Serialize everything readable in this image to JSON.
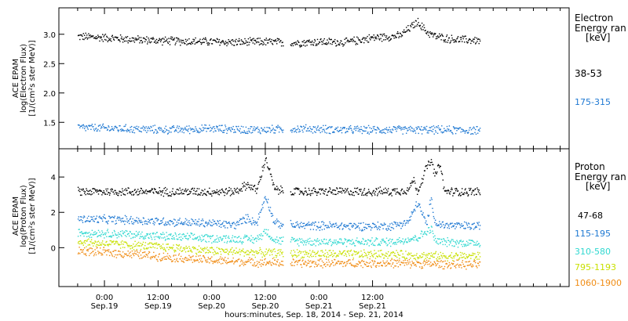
{
  "chart_data": [
    {
      "type": "scatter",
      "panel": "electron",
      "ylabel_lines": [
        "ACE EPAM",
        "log(Electron Flux)",
        "[1/(cm²s ster MeV)]"
      ],
      "legend_title": [
        "Electron",
        "Energy ran",
        "[keV]"
      ],
      "ylim": [
        1.05,
        3.45
      ],
      "yticks": [
        1.5,
        2.0,
        2.5,
        3.0
      ],
      "ytick_labels": [
        "1.5",
        "2.0",
        "2.5",
        "3.0"
      ],
      "series": [
        {
          "name": "38-53",
          "color": "#000000",
          "x": [
            0,
            6,
            12,
            18,
            24,
            30,
            36,
            42,
            48,
            54,
            60,
            66,
            72,
            76,
            78,
            80,
            84,
            90
          ],
          "y": [
            2.97,
            2.95,
            2.92,
            2.9,
            2.89,
            2.88,
            2.87,
            2.88,
            2.86,
            2.88,
            2.87,
            2.95,
            2.98,
            3.22,
            3.05,
            2.97,
            2.92,
            2.9
          ]
        },
        {
          "name": "175-315",
          "color": "#1e78d2",
          "x": [
            0,
            10,
            20,
            30,
            40,
            50,
            60,
            70,
            80,
            90
          ],
          "y": [
            1.42,
            1.4,
            1.38,
            1.4,
            1.38,
            1.4,
            1.38,
            1.38,
            1.38,
            1.37
          ]
        }
      ]
    },
    {
      "type": "scatter",
      "panel": "proton",
      "ylabel_lines": [
        "ACE EPAM",
        "log(Proton Flux)",
        "[1/(cm²s ster MeV)]"
      ],
      "legend_title": [
        "Proton",
        "Energy ran",
        "[keV]"
      ],
      "ylim": [
        -2.2,
        5.6
      ],
      "yticks": [
        0,
        2,
        4
      ],
      "ytick_labels": [
        "0",
        "2",
        "4"
      ],
      "series": [
        {
          "name": "47-68",
          "color": "#000000",
          "x": [
            0,
            10,
            20,
            30,
            35,
            38,
            40,
            42,
            44,
            48,
            60,
            70,
            74,
            75,
            76,
            78,
            79,
            80,
            81,
            82,
            86,
            90
          ],
          "y": [
            3.2,
            3.2,
            3.2,
            3.2,
            3.2,
            3.6,
            3.25,
            5.1,
            3.3,
            3.2,
            3.2,
            3.2,
            3.3,
            3.9,
            3.2,
            4.6,
            4.9,
            4.1,
            4.8,
            3.2,
            3.2,
            3.2
          ]
        },
        {
          "name": "115-195",
          "color": "#1e78d2",
          "x": [
            0,
            10,
            20,
            30,
            35,
            38,
            40,
            42,
            44,
            48,
            60,
            70,
            74,
            76,
            78,
            79,
            80,
            82,
            86,
            90
          ],
          "y": [
            1.65,
            1.6,
            1.5,
            1.4,
            1.3,
            1.7,
            1.4,
            3.0,
            1.4,
            1.3,
            1.25,
            1.25,
            1.5,
            2.6,
            1.3,
            2.8,
            1.4,
            1.3,
            1.25,
            1.25
          ]
        },
        {
          "name": "310-580",
          "color": "#30d8d0",
          "x": [
            0,
            10,
            20,
            30,
            40,
            42,
            44,
            48,
            60,
            70,
            76,
            79,
            80,
            82,
            86,
            90
          ],
          "y": [
            0.9,
            0.8,
            0.65,
            0.55,
            0.5,
            1.0,
            0.45,
            0.4,
            0.35,
            0.35,
            0.6,
            1.1,
            0.4,
            0.35,
            0.3,
            0.3
          ]
        },
        {
          "name": "795-1193",
          "color": "#c8e000",
          "x": [
            0,
            10,
            20,
            30,
            40,
            48,
            60,
            70,
            80,
            90
          ],
          "y": [
            0.35,
            0.2,
            0.05,
            -0.15,
            -0.25,
            -0.3,
            -0.35,
            -0.35,
            -0.45,
            -0.45
          ]
        },
        {
          "name": "1060-1900",
          "color": "#f08c14",
          "x": [
            0,
            10,
            20,
            30,
            40,
            48,
            60,
            70,
            80,
            90
          ],
          "y": [
            -0.15,
            -0.3,
            -0.5,
            -0.7,
            -0.8,
            -0.85,
            -0.85,
            -0.85,
            -0.9,
            -0.95
          ]
        }
      ]
    }
  ],
  "x_axis": {
    "xlim": [
      -4.2,
      110
    ],
    "unit": "hours",
    "ticks": [
      {
        "hour": 6,
        "time": "0:00",
        "date": "Sep.19"
      },
      {
        "hour": 18,
        "time": "12:00",
        "date": "Sep.19"
      },
      {
        "hour": 30,
        "time": "0:00",
        "date": "Sep.20"
      },
      {
        "hour": 42,
        "time": "12:00",
        "date": "Sep.20"
      },
      {
        "hour": 54,
        "time": "0:00",
        "date": "Sep.21"
      },
      {
        "hour": 66,
        "time": "12:00",
        "date": "Sep.21"
      }
    ],
    "minor_every_hours": 3,
    "label": "hours:minutes, Sep. 18, 2014 - Sep. 21, 2014"
  },
  "colors": {
    "axes": "#000000",
    "background": "#ffffff"
  }
}
